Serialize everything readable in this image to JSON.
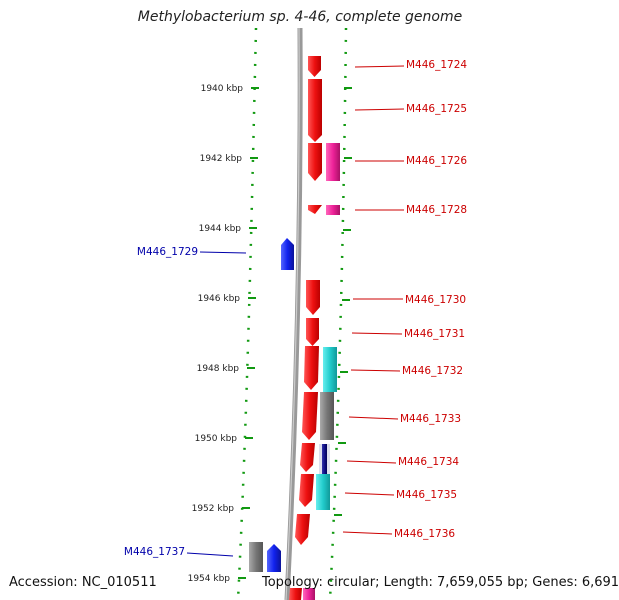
{
  "title": "Methylobacterium sp. 4-46, complete genome",
  "footer": {
    "accession": "Accession: NC_010511",
    "summary": "Topology: circular; Length: 7,659,055 bp; Genes: 6,691"
  },
  "colors": {
    "forward_cds": "#ee1111",
    "reverse_cds": "#1122ee",
    "pink": "#ee2299",
    "cyan": "#22cccc",
    "gray": "#777777",
    "navy": "#111188",
    "label_right": "#cc0000",
    "label_left": "#0000aa",
    "tick": "#119911",
    "backbone": "#888888"
  },
  "ticks": [
    {
      "label": "1940 kbp"
    },
    {
      "label": "1942 kbp"
    },
    {
      "label": "1944 kbp"
    },
    {
      "label": "1946 kbp"
    },
    {
      "label": "1948 kbp"
    },
    {
      "label": "1950 kbp"
    },
    {
      "label": "1952 kbp"
    },
    {
      "label": "1954 kbp"
    }
  ],
  "genes_right": [
    {
      "label": "M446_1724"
    },
    {
      "label": "M446_1725"
    },
    {
      "label": "M446_1726"
    },
    {
      "label": "M446_1728"
    },
    {
      "label": "M446_1730"
    },
    {
      "label": "M446_1731"
    },
    {
      "label": "M446_1732"
    },
    {
      "label": "M446_1733"
    },
    {
      "label": "M446_1734"
    },
    {
      "label": "M446_1735"
    },
    {
      "label": "M446_1736"
    }
  ],
  "genes_left": [
    {
      "label": "M446_1729"
    },
    {
      "label": "M446_1737"
    }
  ]
}
